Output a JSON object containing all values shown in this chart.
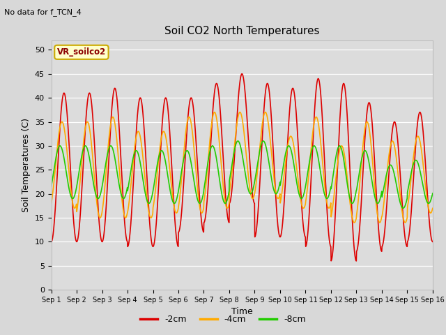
{
  "title": "Soil CO2 North Temperatures",
  "subtitle": "No data for f_TCN_4",
  "ylabel": "Soil Temperatures (C)",
  "xlabel": "Time",
  "ylim": [
    0,
    52
  ],
  "yticks": [
    0,
    5,
    10,
    15,
    20,
    25,
    30,
    35,
    40,
    45,
    50
  ],
  "xtick_labels": [
    "Sep 1",
    "Sep 2",
    "Sep 3",
    "Sep 4",
    "Sep 5",
    "Sep 6",
    "Sep 7",
    "Sep 8",
    "Sep 9",
    "Sep 10",
    "Sep 11",
    "Sep 12",
    "Sep 13",
    "Sep 14",
    "Sep 15",
    "Sep 16"
  ],
  "legend_label": "VR_soilco2",
  "series_labels": [
    "-2cm",
    "-4cm",
    "-8cm"
  ],
  "series_colors": [
    "#dd0000",
    "#ffaa00",
    "#22cc00"
  ],
  "figure_bg": "#d8d8d8",
  "plot_bg": "#dcdcdc",
  "n_days": 15,
  "points_per_day": 96,
  "red_max": [
    41,
    41,
    42,
    40,
    40,
    40,
    43,
    45,
    43,
    42,
    44,
    43,
    39,
    35,
    37
  ],
  "red_min": [
    10,
    10,
    10,
    9,
    9,
    12,
    14,
    18,
    11,
    11,
    9,
    6,
    8,
    9,
    10
  ],
  "orange_max": [
    35,
    35,
    36,
    33,
    33,
    36,
    37,
    37,
    37,
    32,
    36,
    30,
    35,
    31,
    32
  ],
  "orange_min": [
    17,
    15,
    15,
    15,
    16,
    16,
    17,
    19,
    19,
    17,
    17,
    14,
    14,
    14,
    16
  ],
  "green_max": [
    30,
    30,
    30,
    29,
    29,
    29,
    30,
    31,
    31,
    30,
    30,
    30,
    29,
    26,
    27
  ],
  "green_min": [
    19,
    19,
    19,
    18,
    18,
    18,
    18,
    20,
    20,
    19,
    19,
    18,
    18,
    17,
    18
  ]
}
